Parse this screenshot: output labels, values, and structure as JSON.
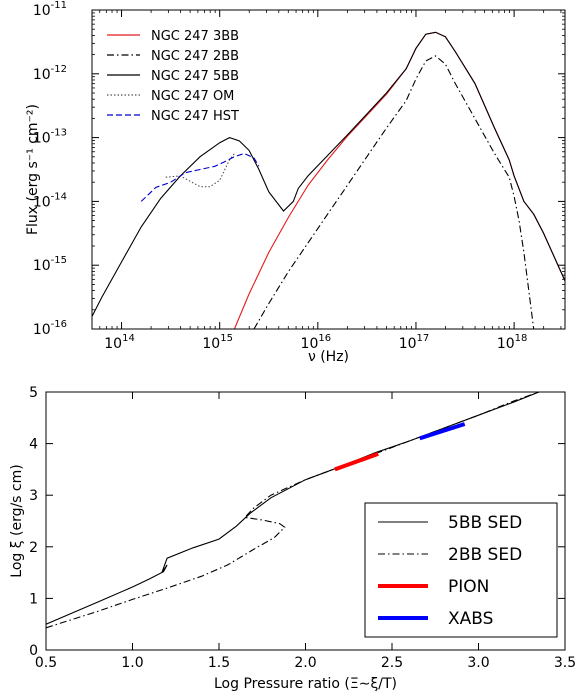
{
  "chart_data": [
    {
      "type": "line",
      "xlabel": "ν (Hz)",
      "ylabel": "Flux (erg s⁻¹ cm⁻²)",
      "xscale": "log",
      "yscale": "log",
      "xlim": [
        50000000000000.0,
        3.3e+18
      ],
      "ylim": [
        1e-16,
        1e-11
      ],
      "x_tick_labels": [
        {
          "base": "10",
          "exp": "14",
          "value": 14
        },
        {
          "base": "10",
          "exp": "15",
          "value": 15
        },
        {
          "base": "10",
          "exp": "16",
          "value": 16
        },
        {
          "base": "10",
          "exp": "17",
          "value": 17
        },
        {
          "base": "10",
          "exp": "18",
          "value": 18
        }
      ],
      "y_tick_labels": [
        {
          "base": "10",
          "exp": "-11",
          "value": -11
        },
        {
          "base": "10",
          "exp": "-12",
          "value": -12
        },
        {
          "base": "10",
          "exp": "-13",
          "value": -13
        },
        {
          "base": "10",
          "exp": "-14",
          "value": -14
        },
        {
          "base": "10",
          "exp": "-15",
          "value": -15
        },
        {
          "base": "10",
          "exp": "-16",
          "value": -16
        }
      ],
      "legend_position": "top-left",
      "series": [
        {
          "name": "NGC 247 3BB",
          "color": "#e41a1c",
          "style": "solid",
          "log_x": [
            15.15,
            15.3,
            15.5,
            15.7,
            15.9,
            16.1,
            16.3,
            16.5,
            16.7,
            16.9,
            17.0,
            17.1,
            17.2,
            17.3,
            17.4,
            17.6,
            17.8,
            17.95,
            18.0,
            18.1,
            18.2,
            18.3,
            18.52
          ],
          "log_y": [
            -16.0,
            -15.45,
            -14.8,
            -14.25,
            -13.75,
            -13.35,
            -12.98,
            -12.65,
            -12.32,
            -11.92,
            -11.6,
            -11.38,
            -11.35,
            -11.42,
            -11.65,
            -12.15,
            -12.85,
            -13.35,
            -13.6,
            -14.0,
            -14.2,
            -14.5,
            -15.25
          ]
        },
        {
          "name": "NGC 247 2BB",
          "color": "#000000",
          "style": "dashdot",
          "log_x": [
            15.35,
            15.5,
            15.7,
            15.9,
            16.1,
            16.3,
            16.5,
            16.7,
            16.9,
            17.0,
            17.1,
            17.2,
            17.3,
            17.4,
            17.6,
            17.8,
            17.95,
            18.0,
            18.05,
            18.1,
            18.15,
            18.2
          ],
          "log_y": [
            -16.0,
            -15.6,
            -15.1,
            -14.65,
            -14.2,
            -13.75,
            -13.3,
            -12.85,
            -12.42,
            -12.08,
            -11.8,
            -11.72,
            -11.85,
            -12.15,
            -12.7,
            -13.25,
            -13.62,
            -13.92,
            -14.3,
            -14.8,
            -15.4,
            -16.0
          ]
        },
        {
          "name": "NGC 247 5BB",
          "color": "#000000",
          "style": "solid",
          "log_x": [
            13.7,
            13.8,
            14.0,
            14.2,
            14.4,
            14.6,
            14.8,
            15.0,
            15.1,
            15.2,
            15.3,
            15.4,
            15.5,
            15.65,
            15.75,
            15.8,
            15.9,
            16.1,
            16.3,
            16.5,
            16.7,
            16.9,
            17.0,
            17.1,
            17.2,
            17.3,
            17.4,
            17.6,
            17.8,
            17.95,
            18.0,
            18.1,
            18.2,
            18.3,
            18.52
          ],
          "log_y": [
            -15.8,
            -15.5,
            -14.95,
            -14.4,
            -13.95,
            -13.6,
            -13.3,
            -13.08,
            -13.0,
            -13.05,
            -13.2,
            -13.5,
            -13.85,
            -14.15,
            -14.0,
            -13.8,
            -13.6,
            -13.28,
            -12.96,
            -12.63,
            -12.3,
            -11.92,
            -11.6,
            -11.38,
            -11.35,
            -11.42,
            -11.65,
            -12.15,
            -12.85,
            -13.35,
            -13.6,
            -14.0,
            -14.2,
            -14.5,
            -15.25
          ]
        },
        {
          "name": "NGC 247 OM",
          "color": "#555555",
          "style": "dotted",
          "log_x": [
            14.45,
            14.6,
            14.8,
            14.9,
            15.0,
            15.1,
            15.15
          ],
          "log_y": [
            -13.62,
            -13.6,
            -13.77,
            -13.77,
            -13.67,
            -13.35,
            -13.25
          ]
        },
        {
          "name": "NGC 247 HST",
          "color": "#0000cc",
          "style": "dashed",
          "log_x": [
            14.2,
            14.35,
            14.5,
            14.65,
            14.8,
            14.95,
            15.05,
            15.15,
            15.25,
            15.35,
            15.4
          ],
          "log_y": [
            -14.0,
            -13.78,
            -13.7,
            -13.55,
            -13.5,
            -13.45,
            -13.38,
            -13.3,
            -13.25,
            -13.32,
            -13.45
          ]
        }
      ]
    },
    {
      "type": "line",
      "xlabel": "Log Pressure ratio (Ξ∼ξ/T)",
      "ylabel": "Log ξ (erg/s cm)",
      "xlim": [
        0.5,
        3.5
      ],
      "ylim": [
        0,
        5
      ],
      "x_ticks": [
        "0.5",
        "1.0",
        "1.5",
        "2.0",
        "2.5",
        "3.0",
        "3.5"
      ],
      "y_ticks": [
        "0",
        "1",
        "2",
        "3",
        "4",
        "5"
      ],
      "legend_position": "lower-right",
      "series": [
        {
          "name": "5BB SED",
          "color": "#000000",
          "style": "solid",
          "x": [
            0.5,
            0.8,
            1.0,
            1.1,
            1.18,
            1.2,
            1.17,
            1.2,
            1.35,
            1.5,
            1.6,
            1.68,
            1.8,
            2.0,
            2.2,
            2.4,
            2.6,
            2.8,
            3.0,
            3.2,
            3.35
          ],
          "y": [
            0.5,
            0.93,
            1.22,
            1.38,
            1.52,
            1.65,
            1.5,
            1.78,
            1.98,
            2.15,
            2.4,
            2.65,
            2.95,
            3.3,
            3.55,
            3.82,
            4.05,
            4.3,
            4.55,
            4.8,
            5.0
          ]
        },
        {
          "name": "2BB SED",
          "color": "#000000",
          "style": "dashdot",
          "x": [
            0.5,
            0.8,
            1.0,
            1.2,
            1.4,
            1.55,
            1.7,
            1.82,
            1.88,
            1.85,
            1.75,
            1.65,
            1.7,
            1.8,
            2.0,
            2.2,
            2.4,
            2.6,
            2.8,
            3.0,
            3.2,
            3.35
          ],
          "y": [
            0.43,
            0.75,
            0.98,
            1.2,
            1.43,
            1.65,
            1.95,
            2.18,
            2.38,
            2.45,
            2.52,
            2.57,
            2.75,
            3.0,
            3.3,
            3.55,
            3.8,
            4.05,
            4.3,
            4.55,
            4.82,
            5.0
          ]
        },
        {
          "name": "PION",
          "color": "#ff0000",
          "style": "thick",
          "x": [
            2.17,
            2.42
          ],
          "y": [
            3.5,
            3.8
          ]
        },
        {
          "name": "XABS",
          "color": "#0000ff",
          "style": "thick",
          "x": [
            2.66,
            2.92
          ],
          "y": [
            4.1,
            4.38
          ]
        }
      ]
    }
  ]
}
